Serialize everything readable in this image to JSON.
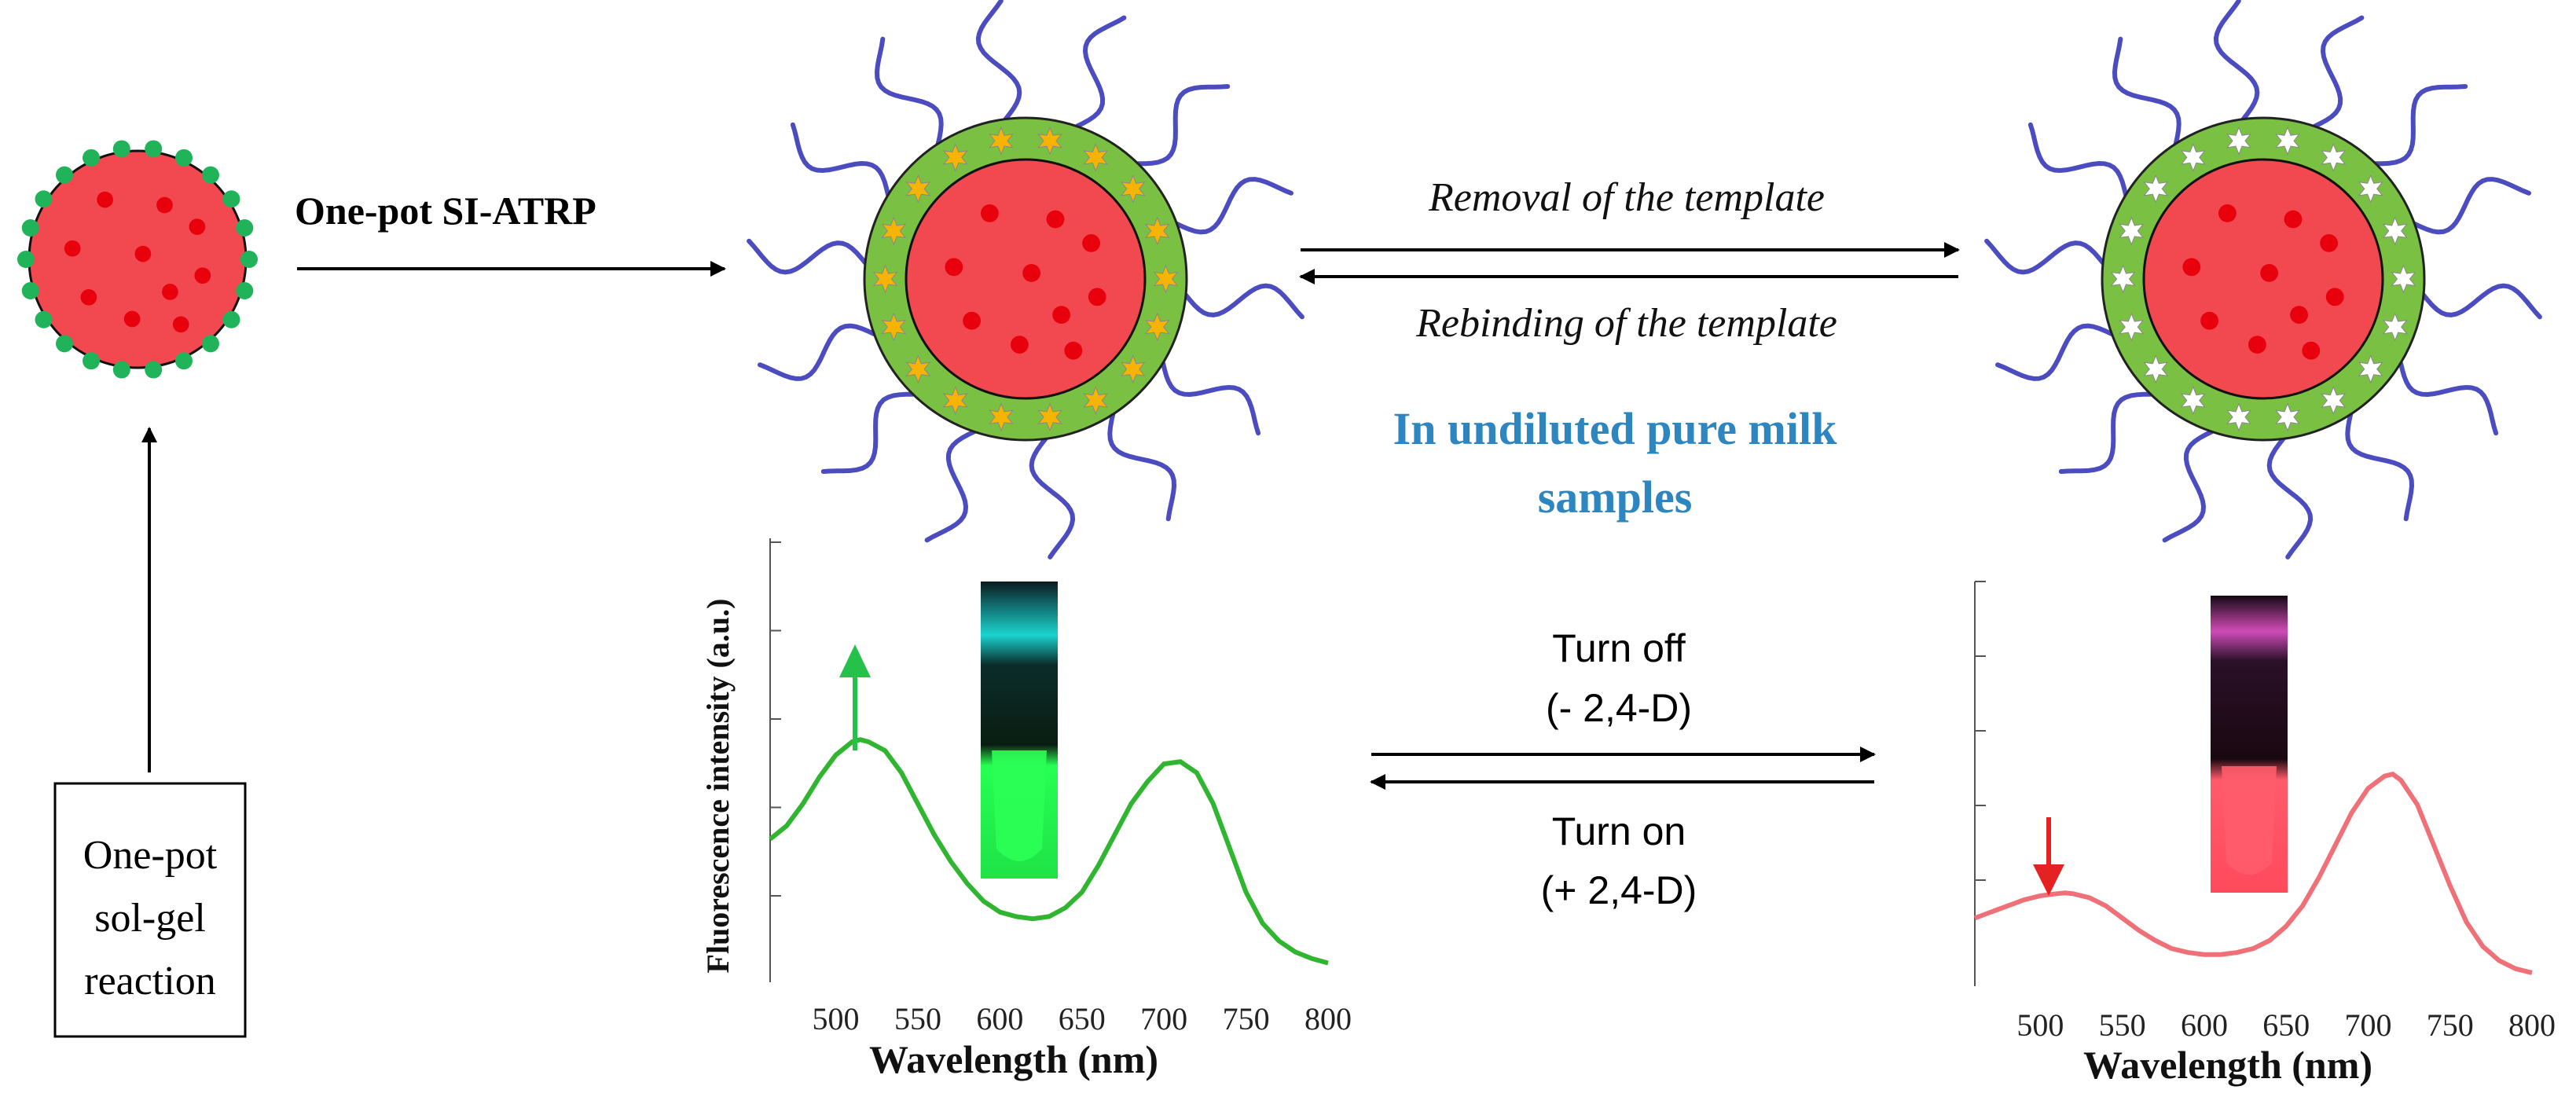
{
  "texts": {
    "step_one_pot_siatrp": "One-pot SI-ATRP",
    "removal": "Removal of the template",
    "rebinding": "Rebinding of the template",
    "milk_line1": "In undiluted pure milk",
    "milk_line2": "samples",
    "solgel_line1": "One-pot",
    "solgel_line2": "sol-gel",
    "solgel_line3": "reaction",
    "turn_off_line1": "Turn off",
    "turn_off_line2": "(- 2,4-D)",
    "turn_on_line1": "Turn on",
    "turn_on_line2": "(+ 2,4-D)"
  },
  "colors": {
    "core_red": "#f2484f",
    "core_dot": "#e8000d",
    "shell_green": "#7ac043",
    "seed_green": "#21b35a",
    "template_star": "#f6b400",
    "cavity_star": "#ffffff",
    "brush_blue": "#4b4cc0",
    "milk_text": "#2e86c1",
    "green_curve": "#2fb52f",
    "red_curve": "#f07078",
    "green_arrow": "#24c24a",
    "red_arrow": "#e52222"
  },
  "chart_data": [
    {
      "type": "line",
      "title": "",
      "xlabel": "Wavelength (nm)",
      "ylabel": "Fluorescence intensity (a.u.)",
      "xlim": [
        460,
        800
      ],
      "ylim": [
        0,
        1
      ],
      "xticks": [
        500,
        550,
        600,
        650,
        700,
        750,
        800
      ],
      "series": [
        {
          "x": [
            460,
            470,
            480,
            490,
            500,
            510,
            515,
            520,
            530,
            540,
            550,
            560,
            570,
            580,
            590,
            600,
            610,
            620,
            630,
            640,
            650,
            660,
            670,
            680,
            690,
            700,
            710,
            720,
            730,
            740,
            750,
            760,
            770,
            780,
            790,
            800
          ],
          "y": [
            0.32,
            0.35,
            0.4,
            0.46,
            0.51,
            0.54,
            0.545,
            0.54,
            0.52,
            0.47,
            0.4,
            0.33,
            0.27,
            0.22,
            0.18,
            0.155,
            0.145,
            0.14,
            0.145,
            0.165,
            0.2,
            0.26,
            0.33,
            0.4,
            0.45,
            0.49,
            0.495,
            0.47,
            0.4,
            0.3,
            0.2,
            0.13,
            0.09,
            0.065,
            0.05,
            0.04
          ]
        }
      ],
      "arrow": "up",
      "vial_glow": "green"
    },
    {
      "type": "line",
      "title": "",
      "xlabel": "Wavelength (nm)",
      "ylabel": "",
      "xlim": [
        460,
        800
      ],
      "ylim": [
        0,
        1
      ],
      "xticks": [
        500,
        550,
        600,
        650,
        700,
        750,
        800
      ],
      "series": [
        {
          "x": [
            460,
            470,
            480,
            490,
            500,
            510,
            515,
            520,
            530,
            540,
            550,
            560,
            570,
            580,
            590,
            600,
            610,
            620,
            630,
            640,
            650,
            660,
            670,
            680,
            690,
            700,
            710,
            715,
            720,
            730,
            740,
            750,
            760,
            770,
            780,
            790,
            800
          ],
          "y": [
            0.17,
            0.185,
            0.2,
            0.215,
            0.225,
            0.23,
            0.232,
            0.23,
            0.22,
            0.2,
            0.17,
            0.14,
            0.115,
            0.095,
            0.085,
            0.08,
            0.08,
            0.085,
            0.095,
            0.115,
            0.15,
            0.2,
            0.27,
            0.35,
            0.43,
            0.49,
            0.52,
            0.525,
            0.51,
            0.45,
            0.35,
            0.25,
            0.16,
            0.1,
            0.065,
            0.045,
            0.035
          ]
        }
      ],
      "arrow": "down",
      "vial_glow": "red"
    }
  ]
}
